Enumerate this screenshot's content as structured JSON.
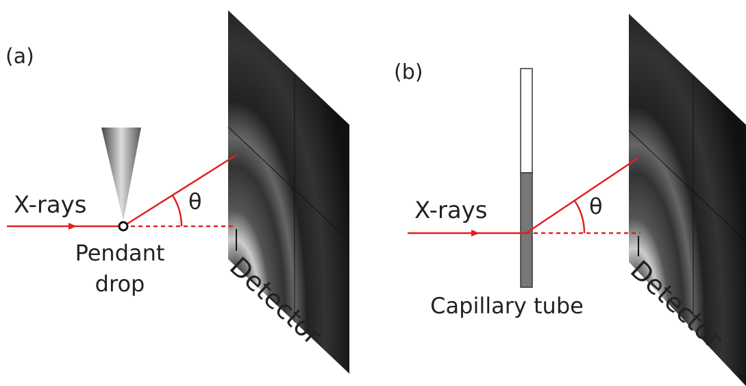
{
  "panels": [
    {
      "label": "(a)",
      "beam_label": "X-rays",
      "angle_label": "θ",
      "sample_label": [
        "Pendant",
        "drop"
      ],
      "detector_label": "Detector"
    },
    {
      "label": "(b)",
      "beam_label": "X-rays",
      "angle_label": "θ",
      "sample_label": [
        "Capillary tube"
      ],
      "detector_label": "Detector"
    }
  ]
}
